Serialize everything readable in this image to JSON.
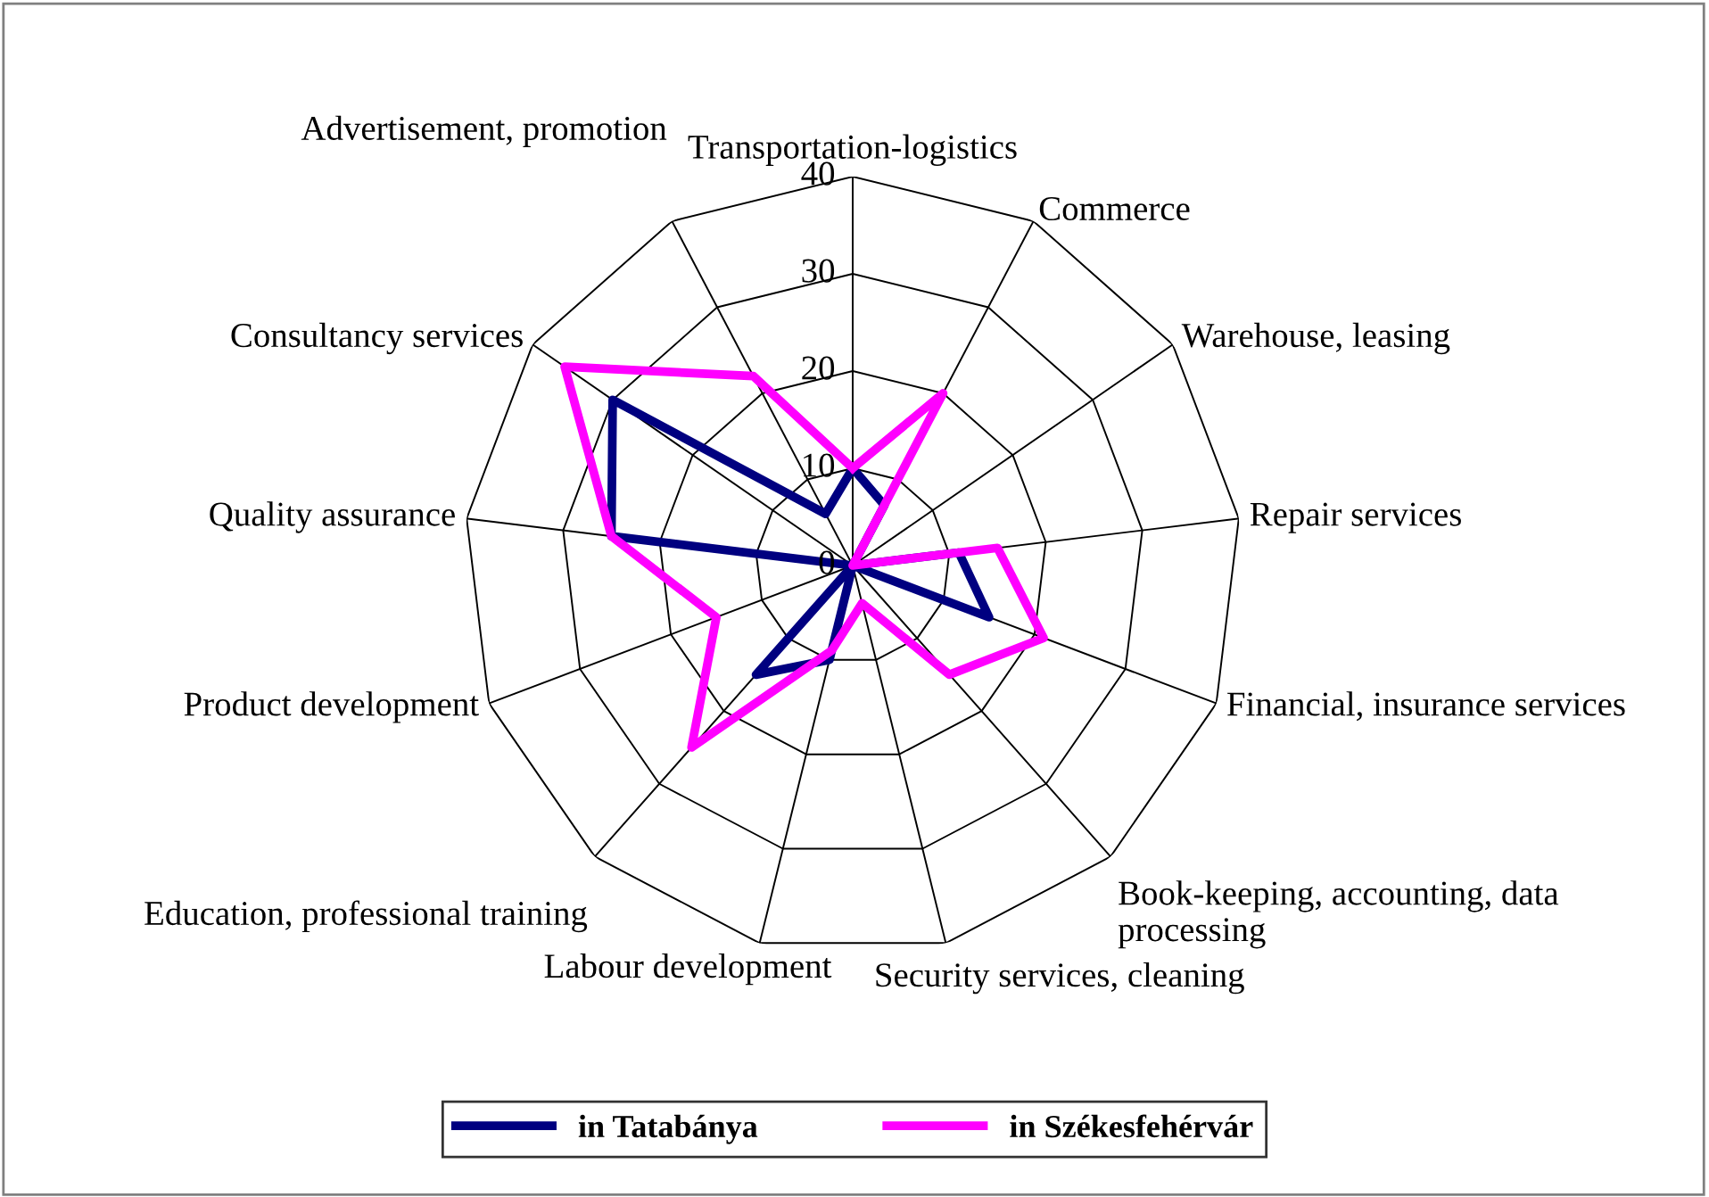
{
  "chart_data": {
    "type": "radar",
    "categories": [
      "Transportation-logistics",
      "Commerce",
      "Warehouse, leasing",
      "Repair services",
      "Financial, insurance services",
      "Book-keeping, accounting, data processing",
      "Security services, cleaning",
      "Labour development",
      "Education, professional training",
      "Product development",
      "Quality assurance",
      "Consultancy services",
      "Advertisement, promotion"
    ],
    "series": [
      {
        "name": "in Tatabánya",
        "color": "#000080",
        "values": [
          10,
          7,
          0,
          11,
          15,
          0,
          0,
          10,
          15,
          0,
          25,
          30,
          6
        ]
      },
      {
        "name": "in Székesfehérvár",
        "color": "#ff00ff",
        "values": [
          10,
          20,
          0,
          15,
          21,
          15,
          4,
          9,
          25,
          15,
          25,
          36,
          22
        ]
      }
    ],
    "ylim": [
      0,
      40
    ],
    "yticks": [
      0,
      10,
      20,
      30,
      40
    ],
    "grid": true,
    "legend": "bottom"
  }
}
